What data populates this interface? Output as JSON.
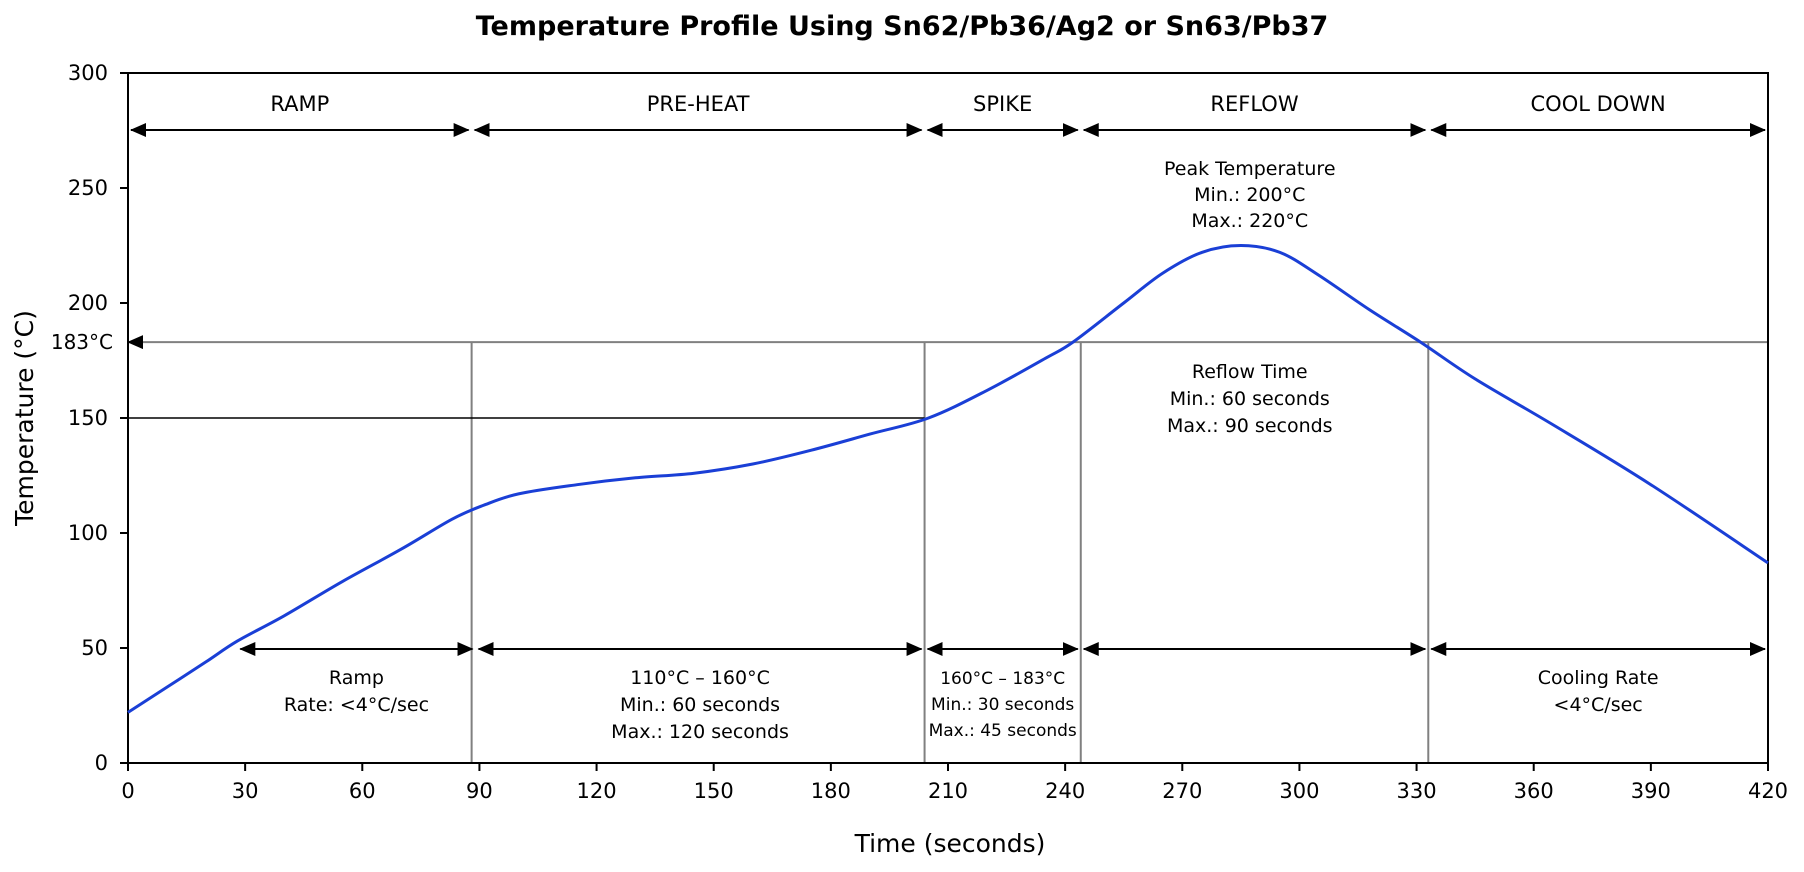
{
  "chart_data": {
    "type": "line",
    "title": "Temperature Profile Using Sn62/Pb36/Ag2 or Sn63/Pb37",
    "xlabel": "Time (seconds)",
    "ylabel": "Temperature (°C)",
    "xlim": [
      0,
      420
    ],
    "ylim": [
      0,
      300
    ],
    "xticks": [
      0,
      30,
      60,
      90,
      120,
      150,
      180,
      210,
      240,
      270,
      300,
      330,
      360,
      390,
      420
    ],
    "yticks": [
      0,
      50,
      100,
      150,
      200,
      250,
      300
    ],
    "grid": false,
    "colors": {
      "curve": "#1a3fd6",
      "ref_line": "#808080",
      "axis": "#000000"
    },
    "series": [
      {
        "x": [
          0,
          10,
          20,
          28,
          40,
          55,
          70,
          83,
          91,
          100,
          115,
          130,
          145,
          160,
          175,
          190,
          205,
          220,
          235,
          242,
          255,
          265,
          275,
          285,
          295,
          305,
          318,
          331,
          345,
          365,
          390,
          420
        ],
        "y": [
          22,
          33,
          44,
          53,
          64,
          79,
          93,
          106,
          112,
          117,
          121,
          124,
          126,
          130,
          136,
          143,
          150,
          162,
          176,
          183,
          200,
          213,
          222,
          225,
          222,
          212,
          197,
          183,
          167,
          147,
          121,
          87
        ]
      }
    ],
    "reference_lines": [
      {
        "y": 183,
        "label": "183°C"
      },
      {
        "y": 150
      }
    ],
    "phase_boundaries_x": [
      0,
      88,
      204,
      244,
      333,
      420
    ],
    "phases_top": [
      "RAMP",
      "PRE-HEAT",
      "SPIKE",
      "REFLOW",
      "COOL DOWN"
    ],
    "peak_note": [
      "Peak Temperature",
      "Min.: 200°C",
      "Max.: 220°C"
    ],
    "reflow_note": [
      "Reflow Time",
      "Min.: 60 seconds",
      "Max.: 90 seconds"
    ],
    "bottom_notes": [
      {
        "lines": [
          "Ramp",
          "Rate: <4°C/sec"
        ],
        "from": 28,
        "to": 89
      },
      {
        "lines": [
          "110°C – 160°C",
          "Min.: 60 seconds",
          "Max.: 120 seconds"
        ],
        "from": 89,
        "to": 204
      },
      {
        "lines": [
          "160°C – 183°C",
          "Min.: 30 seconds",
          "Max.: 45 seconds"
        ],
        "from": 204,
        "to": 244
      },
      {
        "lines": [],
        "from": 244,
        "to": 333
      },
      {
        "lines": [
          "Cooling Rate",
          "<4°C/sec"
        ],
        "from": 333,
        "to": 420
      }
    ]
  }
}
